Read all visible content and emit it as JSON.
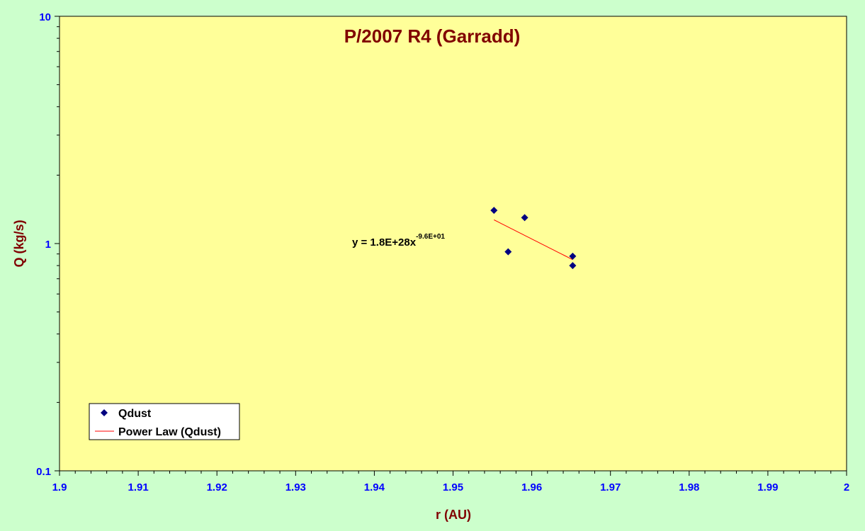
{
  "chart_data": {
    "type": "scatter",
    "title": "P/2007 R4 (Garradd)",
    "xlabel": "r (AU)",
    "ylabel": "Q (kg/s)",
    "xlim": [
      1.9,
      2.0
    ],
    "ylim": [
      0.1,
      10
    ],
    "yscale": "log",
    "x_ticks": [
      "1.9",
      "1.91",
      "1.92",
      "1.93",
      "1.94",
      "1.95",
      "1.96",
      "1.97",
      "1.98",
      "1.99",
      "2"
    ],
    "y_ticks": [
      "0.1",
      "1",
      "10"
    ],
    "grid": false,
    "legend_position": "bottom-left",
    "series": [
      {
        "name": "Qdust",
        "marker": "diamond",
        "color": "#000080",
        "x": [
          1.9552,
          1.957,
          1.9591,
          1.9652,
          1.9652
        ],
        "y": [
          1.4,
          0.92,
          1.3,
          0.88,
          0.8
        ]
      }
    ],
    "trendline": {
      "name": "Power Law (Qdust)",
      "type": "power",
      "color": "#ff0000",
      "x_range": [
        1.9552,
        1.9652
      ],
      "equation_main": "y = 1.8E+28x",
      "equation_exp": "-9.6E+01"
    }
  }
}
